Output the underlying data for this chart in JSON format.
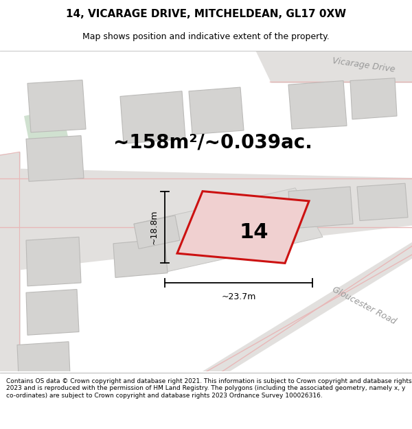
{
  "title": "14, VICARAGE DRIVE, MITCHELDEAN, GL17 0XW",
  "subtitle": "Map shows position and indicative extent of the property.",
  "footer": "Contains OS data © Crown copyright and database right 2021. This information is subject to Crown copyright and database rights 2023 and is reproduced with the permission of HM Land Registry. The polygons (including the associated geometry, namely x, y co-ordinates) are subject to Crown copyright and database rights 2023 Ordnance Survey 100026316.",
  "area_label": "~158m²/~0.039ac.",
  "number_label": "14",
  "width_label": "~23.7m",
  "height_label": "~18.8m",
  "road_label_vicarage_center": "Vicarage Drive",
  "road_label_vicarage_upper": "Vicarage Drive",
  "road_label_gloucester": "Gloucester Road",
  "map_bg": "#f0efed",
  "road_fill": "#e2e0de",
  "building_fill": "#d4d3d1",
  "building_outline": "#bbbab8",
  "road_pink": "#e8b8b8",
  "green_fill": "#c8dcc8",
  "red_plot_color": "#cc1111",
  "red_plot_fill": "#f0d0d0",
  "title_fontsize": 11,
  "subtitle_fontsize": 9,
  "area_fontsize": 20,
  "number_fontsize": 22,
  "dim_fontsize": 9,
  "road_fontsize": 9,
  "footer_fontsize": 6.5
}
